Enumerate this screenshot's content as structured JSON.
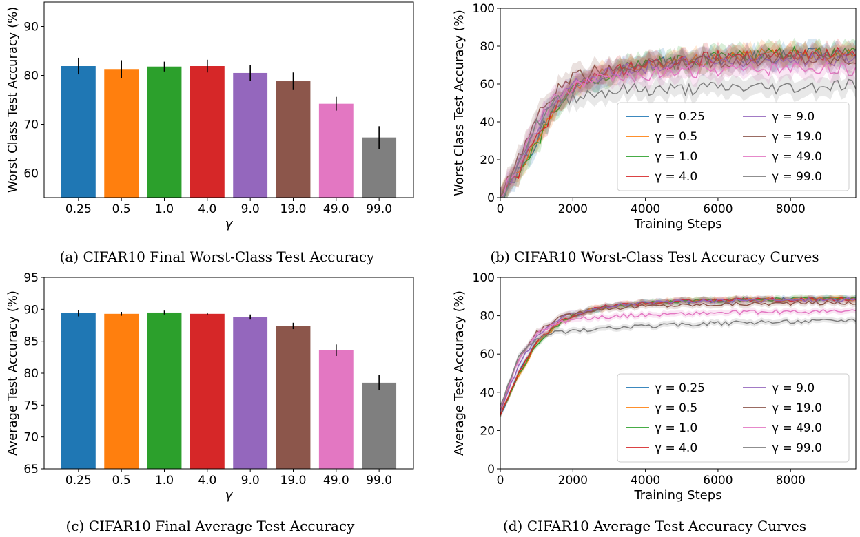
{
  "panels": [
    {
      "caption": "(a) CIFAR10 Final Worst-Class Test Accuracy",
      "chart_data": {
        "type": "bar",
        "categories": [
          "0.25",
          "0.5",
          "1.0",
          "4.0",
          "9.0",
          "19.0",
          "49.0",
          "99.0"
        ],
        "values": [
          81.9,
          81.3,
          81.8,
          81.9,
          80.5,
          78.8,
          74.2,
          67.3
        ],
        "errors": [
          1.7,
          1.8,
          1.0,
          1.3,
          1.6,
          1.8,
          1.4,
          2.3
        ],
        "colors": [
          "#1f77b4",
          "#ff7f0e",
          "#2ca02c",
          "#d62728",
          "#9467bd",
          "#8c564b",
          "#e377c2",
          "#7f7f7f"
        ],
        "xlabel": "γ",
        "ylabel": "Worst Class Test Accuracy (%)",
        "ylim": [
          55,
          95
        ],
        "yticks": [
          60,
          70,
          80,
          90
        ],
        "grid": false
      }
    },
    {
      "caption": "(b) CIFAR10 Worst-Class Test Accuracy Curves",
      "chart_data": {
        "type": "line",
        "xlabel": "Training Steps",
        "ylabel": "Worst Class Test Accuracy (%)",
        "xlim": [
          0,
          9800
        ],
        "ylim": [
          0,
          100
        ],
        "xticks": [
          0,
          2000,
          4000,
          6000,
          8000
        ],
        "yticks": [
          0,
          20,
          40,
          60,
          80,
          100
        ],
        "x": [
          0,
          500,
          1000,
          1500,
          2000,
          2500,
          3000,
          3500,
          4000,
          5000,
          6000,
          7000,
          8000,
          9000,
          9800
        ],
        "legend_position": "lower-right",
        "legend_columns": 2,
        "grid": false,
        "series": [
          {
            "name": "γ = 0.25",
            "color": "#1f77b4",
            "values": [
              0,
              14,
              30,
              48,
              58,
              63,
              66,
              68,
              70,
              72,
              73,
              74,
              75,
              76,
              76
            ],
            "band": 5
          },
          {
            "name": "γ = 0.5",
            "color": "#ff7f0e",
            "values": [
              0,
              13,
              29,
              47,
              58,
              63,
              66,
              68,
              70,
              72,
              74,
              75,
              76,
              76,
              77
            ],
            "band": 5
          },
          {
            "name": "γ = 1.0",
            "color": "#2ca02c",
            "values": [
              0,
              12,
              28,
              46,
              57,
              62,
              66,
              68,
              70,
              72,
              74,
              75,
              76,
              76,
              76
            ],
            "band": 5
          },
          {
            "name": "γ = 4.0",
            "color": "#d62728",
            "values": [
              0,
              13,
              30,
              47,
              58,
              63,
              66,
              68,
              70,
              72,
              74,
              75,
              75,
              76,
              76
            ],
            "band": 5
          },
          {
            "name": "γ = 9.0",
            "color": "#9467bd",
            "values": [
              0,
              17,
              36,
              52,
              60,
              64,
              66,
              68,
              69,
              71,
              72,
              72,
              73,
              73,
              73
            ],
            "band": 5
          },
          {
            "name": "γ = 19.0",
            "color": "#8c564b",
            "values": [
              0,
              22,
              42,
              56,
              63,
              66,
              68,
              69,
              70,
              71,
              72,
              73,
              73,
              73,
              73
            ],
            "band": 5
          },
          {
            "name": "γ = 49.0",
            "color": "#e377c2",
            "values": [
              0,
              18,
              38,
              52,
              58,
              61,
              63,
              64,
              65,
              66,
              67,
              67,
              68,
              68,
              68
            ],
            "band": 5
          },
          {
            "name": "γ = 99.0",
            "color": "#7f7f7f",
            "values": [
              0,
              20,
              38,
              50,
              53,
              55,
              56,
              57,
              57,
              57,
              58,
              58,
              58,
              59,
              60
            ],
            "band": 5
          }
        ]
      }
    },
    {
      "caption": "(c) CIFAR10 Final Average Test Accuracy",
      "chart_data": {
        "type": "bar",
        "categories": [
          "0.25",
          "0.5",
          "1.0",
          "4.0",
          "9.0",
          "19.0",
          "49.0",
          "99.0"
        ],
        "values": [
          89.4,
          89.3,
          89.5,
          89.3,
          88.8,
          87.4,
          83.6,
          78.5
        ],
        "errors": [
          0.5,
          0.3,
          0.3,
          0.2,
          0.4,
          0.5,
          0.9,
          1.2
        ],
        "colors": [
          "#1f77b4",
          "#ff7f0e",
          "#2ca02c",
          "#d62728",
          "#9467bd",
          "#8c564b",
          "#e377c2",
          "#7f7f7f"
        ],
        "xlabel": "γ",
        "ylabel": "Average Test Accuracy (%)",
        "ylim": [
          65,
          95
        ],
        "yticks": [
          65,
          70,
          75,
          80,
          85,
          90,
          95
        ],
        "grid": false
      }
    },
    {
      "caption": "(d) CIFAR10 Average Test Accuracy Curves",
      "chart_data": {
        "type": "line",
        "xlabel": "Training Steps",
        "ylabel": "Average Test Accuracy (%)",
        "xlim": [
          0,
          9800
        ],
        "ylim": [
          0,
          100
        ],
        "xticks": [
          0,
          2000,
          4000,
          6000,
          8000
        ],
        "yticks": [
          0,
          20,
          40,
          60,
          80,
          100
        ],
        "x": [
          0,
          500,
          1000,
          1500,
          2000,
          2500,
          3000,
          3500,
          4000,
          5000,
          6000,
          7000,
          8000,
          9000,
          9800
        ],
        "legend_position": "lower-right",
        "legend_columns": 2,
        "grid": false,
        "series": [
          {
            "name": "γ = 0.25",
            "color": "#1f77b4",
            "values": [
              28,
              50,
              66,
              75,
              80,
              83,
              85,
              86,
              86.5,
              87.5,
              88,
              88.3,
              88.5,
              88.7,
              88.8
            ],
            "band": 1.5
          },
          {
            "name": "γ = 0.5",
            "color": "#ff7f0e",
            "values": [
              28,
              49,
              65,
              74,
              80,
              83,
              85,
              86,
              86.5,
              87.5,
              88,
              88.3,
              88.5,
              88.7,
              88.8
            ],
            "band": 1.5
          },
          {
            "name": "γ = 1.0",
            "color": "#2ca02c",
            "values": [
              28,
              49,
              65,
              74,
              80,
              83,
              85,
              86,
              86.6,
              87.5,
              88,
              88.4,
              88.6,
              88.8,
              88.9
            ],
            "band": 1.5
          },
          {
            "name": "γ = 4.0",
            "color": "#d62728",
            "values": [
              28,
              50,
              66,
              75,
              80,
              83,
              85,
              86,
              86.5,
              87.5,
              88,
              88.3,
              88.5,
              88.7,
              88.8
            ],
            "band": 1.5
          },
          {
            "name": "γ = 9.0",
            "color": "#9467bd",
            "values": [
              30,
              54,
              69,
              77,
              81,
              83.5,
              85,
              86,
              86.5,
              87.3,
              87.8,
              88,
              88.2,
              88.3,
              88.4
            ],
            "band": 1.5
          },
          {
            "name": "γ = 19.0",
            "color": "#8c564b",
            "values": [
              31,
              57,
              71,
              78,
              81,
              83,
              84,
              84.5,
              85,
              85.5,
              86,
              86.3,
              86.5,
              86.7,
              86.8
            ],
            "band": 1.5
          },
          {
            "name": "γ = 49.0",
            "color": "#e377c2",
            "values": [
              32,
              57,
              71,
              76,
              78,
              79,
              79.5,
              80,
              80.5,
              81,
              81.5,
              81.8,
              82,
              82.2,
              82.3
            ],
            "band": 1.5
          },
          {
            "name": "γ = 99.0",
            "color": "#7f7f7f",
            "values": [
              33,
              58,
              68,
              71,
              72,
              73,
              73.5,
              74,
              74.5,
              75.5,
              76,
              76.5,
              77,
              77.5,
              78
            ],
            "band": 1.5
          }
        ]
      }
    }
  ]
}
